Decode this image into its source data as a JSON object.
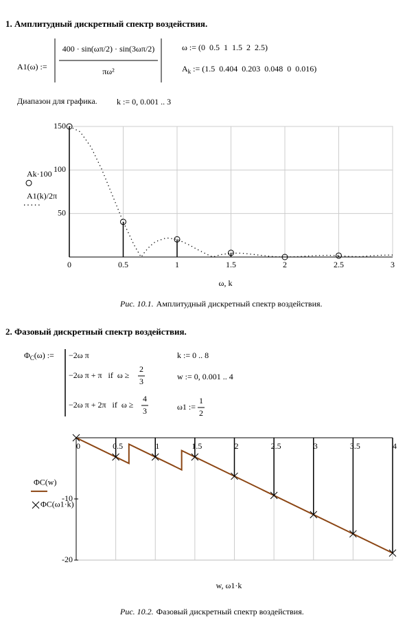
{
  "section1": {
    "title": "1. Амплитудный дискретный спектр воздействия.",
    "a1_lhs": "A1(ω) :=",
    "a1_numerator": "400 · sin(ωπ/2) · sin(3ωπ/2)",
    "a1_denominator": "πω²",
    "omega_def": "ω := (0  0.5  1  1.5  2  2.5)",
    "ak_name": "A",
    "ak_sub": "k",
    "ak_def": " := (1.5  0.404  0.203  0.048  0  0.016)",
    "range_label": "Диапазон для графика.",
    "range_def": "k := 0, 0.001 .. 3",
    "caption_num": "Рис. 10.1.",
    "caption_text": "Амплитудный дискретный спектр воздействия."
  },
  "section2": {
    "title": "2. Фазовый дискретный спектр воздействия.",
    "phi_name": "Φ",
    "phi_sub": "C",
    "phi_rest": "(ω) :=",
    "cases": [
      {
        "expr": "−2ω π"
      },
      {
        "expr": "−2ω π + π   if  ω ≥",
        "num": "2",
        "den": "3"
      },
      {
        "expr": "−2ω π + 2π   if  ω ≥",
        "num": "4",
        "den": "3"
      }
    ],
    "k_def": "k := 0 .. 8",
    "w_def": "w := 0, 0.001 .. 4",
    "omega1_lhs": "ω1 :=",
    "omega1_num": "1",
    "omega1_den": "2",
    "caption_num": "Рис. 10.2.",
    "caption_text": "Фазовый дискретный спектр воздействия."
  },
  "chart_data": [
    {
      "type": "line",
      "xlabel": "ω, k",
      "xlim": [
        0,
        3
      ],
      "ylim": [
        0,
        150
      ],
      "xticks": [
        0,
        0.5,
        1,
        1.5,
        2,
        2.5,
        3
      ],
      "yticks": [
        50,
        100,
        150
      ],
      "xgrid": true,
      "ygrid": true,
      "legend": "left",
      "series": [
        {
          "name": "Ak·100",
          "color": "#000000",
          "style": "stem",
          "marker": "circle",
          "x": [
            0,
            0.5,
            1,
            1.5,
            2,
            2.5
          ],
          "values": [
            150,
            40.4,
            20.3,
            4.8,
            0,
            1.6
          ]
        },
        {
          "name": "A1(k)/2π",
          "color": "#000000",
          "style": "dotted",
          "marker": "none",
          "x": [
            0,
            0.1,
            0.2,
            0.3,
            0.4,
            0.5,
            0.6,
            0.65,
            0.667,
            0.7,
            0.75,
            0.8,
            0.9,
            1.0,
            1.1,
            1.2,
            1.3,
            1.333,
            1.35,
            1.4,
            1.5,
            1.6,
            1.7,
            1.8,
            1.9,
            2.0,
            2.1,
            2.2,
            2.3,
            2.4,
            2.5,
            2.6,
            2.7,
            2.8,
            2.9,
            3.0
          ],
          "values": [
            150,
            143.9,
            126.6,
            101.0,
            70.8,
            40.5,
            14.1,
            3.2,
            0,
            5.8,
            12.7,
            17.7,
            22.0,
            20.3,
            14.7,
            7.9,
            1.7,
            0,
            0.7,
            2.6,
            4.5,
            4.4,
            3.1,
            1.6,
            0.4,
            0,
            0.3,
            1.0,
            1.7,
            2.0,
            1.6,
            0.7,
            0.4,
            1.4,
            2.1,
            2.3
          ]
        }
      ]
    },
    {
      "type": "line",
      "xlabel": "w, ω1·k",
      "xlim": [
        0,
        4
      ],
      "ylim": [
        -20,
        0
      ],
      "xticks": [
        0,
        0.5,
        1,
        1.5,
        2,
        2.5,
        3,
        3.5,
        4
      ],
      "yticks": [
        -20,
        -10
      ],
      "xgrid": true,
      "ygrid": false,
      "legend": "left",
      "series": [
        {
          "name": "ΦC(w)",
          "color": "#8b4513",
          "style": "solid",
          "marker": "none",
          "x": [
            0,
            0.6667,
            0.6667,
            1.3333,
            1.3333,
            4
          ],
          "values": [
            0,
            -4.189,
            -1.047,
            -5.236,
            -2.094,
            -18.85
          ]
        },
        {
          "name": "ΦC(ω1·k)",
          "color": "#000000",
          "style": "stem",
          "marker": "x",
          "x": [
            0,
            0.5,
            1,
            1.5,
            2,
            2.5,
            3,
            3.5,
            4
          ],
          "values": [
            0,
            -3.142,
            -3.142,
            -3.142,
            -6.283,
            -9.425,
            -12.566,
            -15.708,
            -18.85
          ]
        }
      ]
    }
  ]
}
